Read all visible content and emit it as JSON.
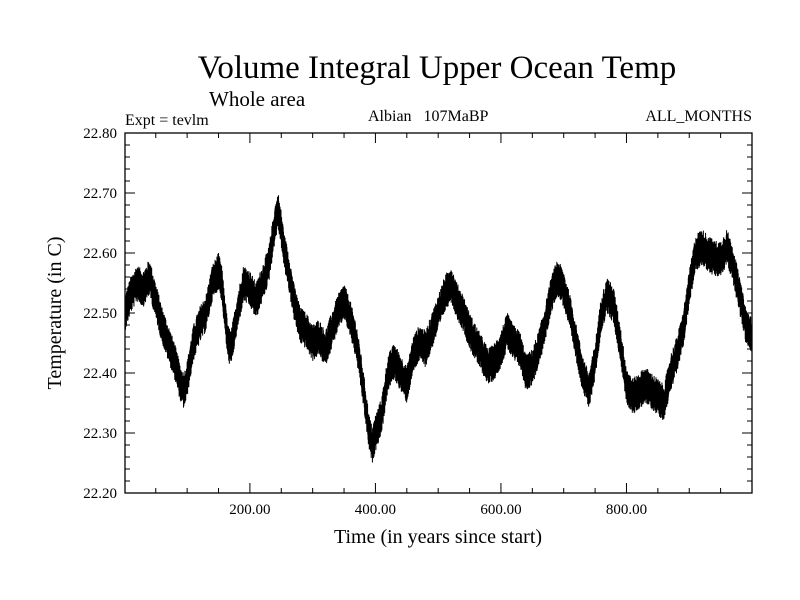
{
  "chart_data": {
    "type": "line",
    "title": "Volume Integral Upper Ocean Temp",
    "subtitle": "Whole area",
    "experiment": "Expt = tevlm",
    "period": "Albian   107MaBP",
    "months": "ALL_MONTHS",
    "xlabel": "Time (in years since start)",
    "ylabel": "Temperature (in C)",
    "xlim": [
      1,
      1000
    ],
    "ylim": [
      22.2,
      22.8
    ],
    "x_ticks": [
      {
        "value": 200,
        "label": "200.00"
      },
      {
        "value": 400,
        "label": "400.00"
      },
      {
        "value": 600,
        "label": "600.00"
      },
      {
        "value": 800,
        "label": "800.00"
      }
    ],
    "y_ticks": [
      {
        "value": 22.2,
        "label": "22.20"
      },
      {
        "value": 22.3,
        "label": "22.30"
      },
      {
        "value": 22.4,
        "label": "22.40"
      },
      {
        "value": 22.5,
        "label": "22.50"
      },
      {
        "value": 22.6,
        "label": "22.60"
      },
      {
        "value": 22.7,
        "label": "22.70"
      },
      {
        "value": 22.8,
        "label": "22.80"
      }
    ],
    "x_minor_step": 50,
    "y_minor_step": 0.02,
    "noise_amplitude": 0.03,
    "series": [
      {
        "name": "Temperature",
        "color": "#000000",
        "x": [
          1,
          10,
          20,
          30,
          40,
          50,
          60,
          70,
          80,
          90,
          95,
          100,
          110,
          120,
          130,
          140,
          150,
          155,
          160,
          165,
          170,
          180,
          190,
          200,
          210,
          220,
          230,
          240,
          245,
          250,
          255,
          260,
          270,
          280,
          290,
          300,
          310,
          320,
          330,
          340,
          350,
          360,
          370,
          380,
          390,
          395,
          400,
          410,
          420,
          430,
          440,
          450,
          460,
          470,
          480,
          490,
          500,
          510,
          520,
          530,
          540,
          550,
          560,
          570,
          580,
          590,
          600,
          610,
          620,
          630,
          640,
          650,
          660,
          670,
          680,
          690,
          700,
          710,
          720,
          730,
          740,
          750,
          760,
          770,
          780,
          790,
          800,
          810,
          820,
          830,
          840,
          850,
          860,
          870,
          880,
          890,
          900,
          910,
          920,
          930,
          940,
          950,
          960,
          970,
          980,
          990,
          1000
        ],
        "y": [
          22.5,
          22.53,
          22.55,
          22.54,
          22.56,
          22.52,
          22.48,
          22.45,
          22.42,
          22.38,
          22.37,
          22.39,
          22.45,
          22.48,
          22.5,
          22.55,
          22.57,
          22.55,
          22.5,
          22.45,
          22.44,
          22.5,
          22.55,
          22.54,
          22.52,
          22.55,
          22.58,
          22.65,
          22.67,
          22.64,
          22.6,
          22.58,
          22.52,
          22.48,
          22.47,
          22.45,
          22.46,
          22.44,
          22.47,
          22.5,
          22.52,
          22.49,
          22.45,
          22.38,
          22.3,
          22.28,
          22.3,
          22.33,
          22.4,
          22.42,
          22.4,
          22.38,
          22.43,
          22.45,
          22.44,
          22.47,
          22.5,
          22.53,
          22.55,
          22.52,
          22.5,
          22.47,
          22.45,
          22.43,
          22.41,
          22.42,
          22.44,
          22.47,
          22.45,
          22.44,
          22.4,
          22.41,
          22.44,
          22.48,
          22.53,
          22.56,
          22.54,
          22.5,
          22.45,
          22.4,
          22.37,
          22.42,
          22.5,
          22.53,
          22.51,
          22.45,
          22.38,
          22.36,
          22.37,
          22.38,
          22.37,
          22.36,
          22.35,
          22.4,
          22.43,
          22.47,
          22.54,
          22.6,
          22.61,
          22.6,
          22.59,
          22.59,
          22.61,
          22.58,
          22.53,
          22.48,
          22.46
        ]
      }
    ]
  }
}
